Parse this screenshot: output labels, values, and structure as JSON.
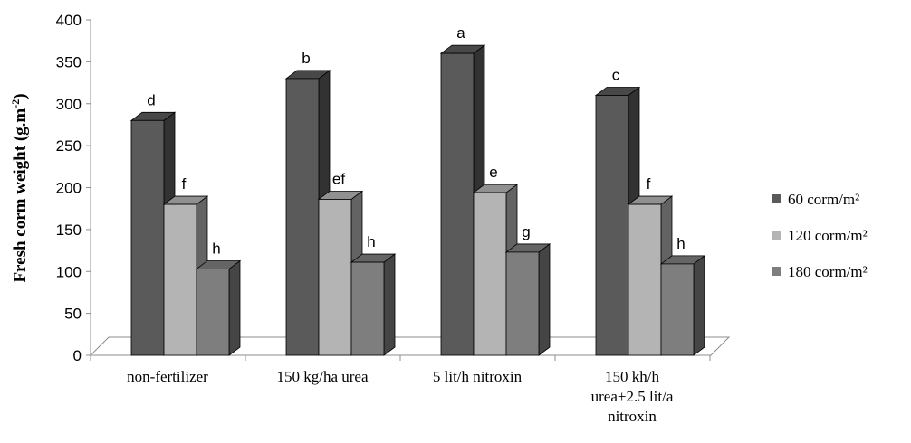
{
  "chart_data": {
    "type": "bar",
    "title": "",
    "ylabel_main": "Fresh corm weight (g.m",
    "ylabel_sup": "-2",
    "ylabel_end": ")",
    "xlabel": "",
    "ylim": [
      0,
      400
    ],
    "yticks": [
      0,
      50,
      100,
      150,
      200,
      250,
      300,
      350,
      400
    ],
    "categories": [
      [
        "non-fertilizer"
      ],
      [
        "150 kg/ha urea"
      ],
      [
        "5 lit/h nitroxin"
      ],
      [
        "150 kh/h",
        "urea+2.5 lit/a",
        "nitroxin"
      ]
    ],
    "series": [
      {
        "name": "60 corm/m²",
        "color": "#5a5a5a",
        "values": [
          280,
          330,
          360,
          310
        ],
        "labels": [
          "d",
          "b",
          "a",
          "c"
        ]
      },
      {
        "name": "120 corm/m²",
        "color": "#b4b4b4",
        "values": [
          180,
          186,
          194,
          180
        ],
        "labels": [
          "f",
          "ef",
          "e",
          "f"
        ]
      },
      {
        "name": "180 corm/m²",
        "color": "#7e7e7e",
        "values": [
          103,
          111,
          123,
          109
        ],
        "labels": [
          "h",
          "h",
          "g",
          "h"
        ]
      }
    ],
    "grid": false,
    "legend_position": "right"
  }
}
